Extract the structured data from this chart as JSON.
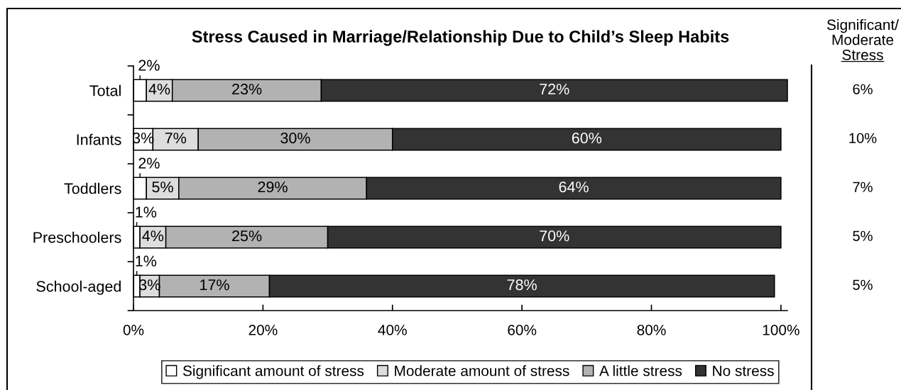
{
  "chart_data": {
    "type": "bar",
    "orientation": "horizontal",
    "stacked": true,
    "title": "Stress Caused in Marriage/Relationship Due to Child’s Sleep Habits",
    "categories": [
      "Total",
      "Infants",
      "Toddlers",
      "Preschoolers",
      "School-aged"
    ],
    "series": [
      {
        "name": "Significant amount of stress",
        "color": "#ffffff",
        "values": [
          2,
          3,
          2,
          1,
          1
        ],
        "value_labels": [
          "2%",
          "3%",
          "2%",
          "1%",
          "1%"
        ]
      },
      {
        "name": "Moderate amount of stress",
        "color": "#dddddd",
        "values": [
          4,
          7,
          5,
          4,
          3
        ],
        "value_labels": [
          "4%",
          "7%",
          "5%",
          "4%",
          "3%"
        ]
      },
      {
        "name": "A little stress",
        "color": "#b2b2b2",
        "values": [
          23,
          30,
          29,
          25,
          17
        ],
        "value_labels": [
          "23%",
          "30%",
          "29%",
          "25%",
          "17%"
        ]
      },
      {
        "name": "No stress",
        "color": "#333333",
        "values": [
          72,
          60,
          64,
          70,
          78
        ],
        "value_labels": [
          "72%",
          "60%",
          "64%",
          "70%",
          "78%"
        ]
      }
    ],
    "xlim": [
      0,
      101
    ],
    "xticks": [
      {
        "value": 0,
        "label": "0%"
      },
      {
        "value": 20,
        "label": "20%"
      },
      {
        "value": 40,
        "label": "40%"
      },
      {
        "value": 60,
        "label": "60%"
      },
      {
        "value": 80,
        "label": "80%"
      },
      {
        "value": 100,
        "label": "100%"
      }
    ],
    "legend": "bottom",
    "annotations": [
      "Significant/\nModerate\nStress",
      "6%",
      "10%",
      "7%",
      "5%",
      "5%"
    ]
  }
}
